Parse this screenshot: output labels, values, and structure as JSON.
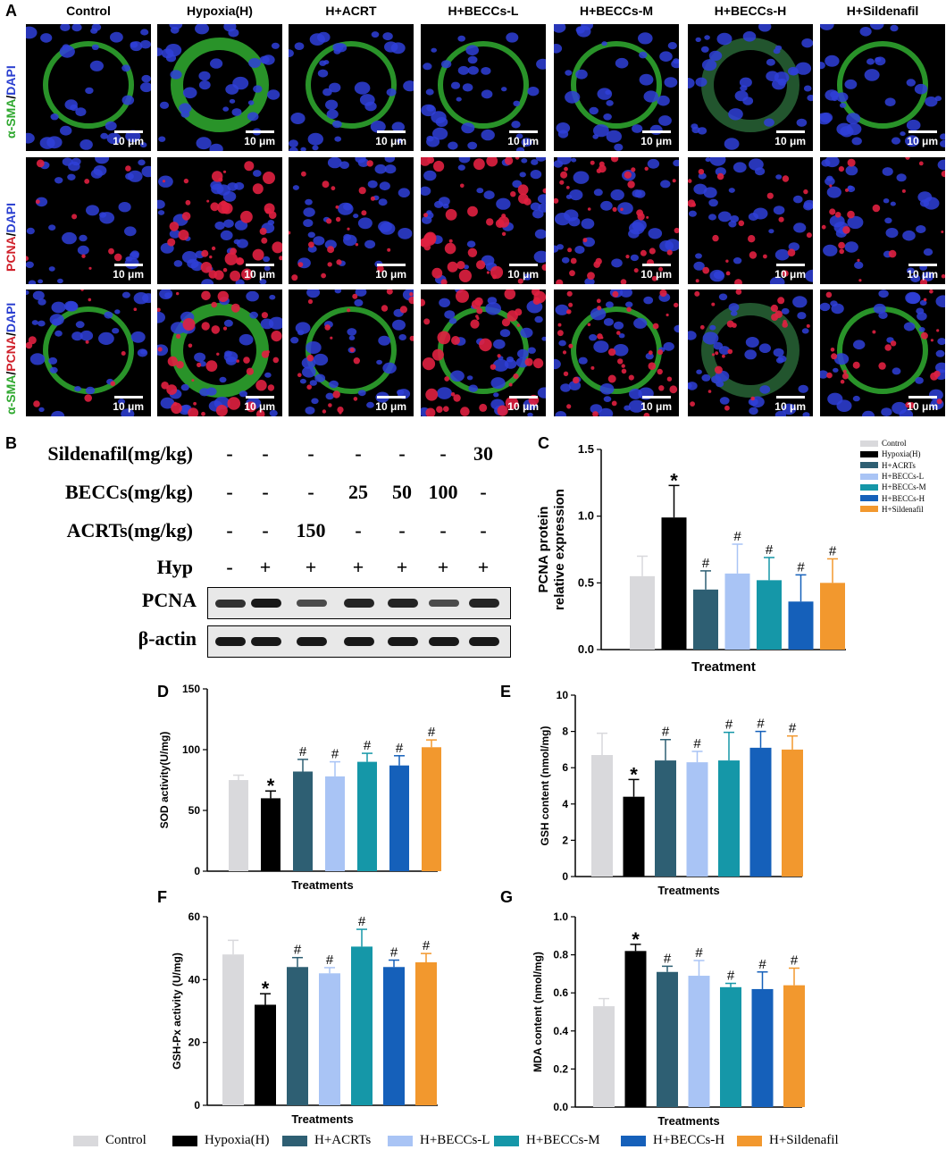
{
  "panel_labels": [
    "A",
    "B",
    "C",
    "D",
    "E",
    "F",
    "G"
  ],
  "micro": {
    "columns": [
      "Control",
      "Hypoxia(H)",
      "H+ACRT",
      "H+BECCs-L",
      "H+BECCs-M",
      "H+BECCs-H",
      "H+Sildenafil"
    ],
    "rows": [
      "α-SMA/DAPI",
      "PCNA/DAPI",
      "α-SMA/PCNA/DAPI"
    ],
    "scale_bar": "10 μm"
  },
  "blot": {
    "treatment_rows": [
      {
        "label": "Sildenafil(mg/kg)",
        "values": [
          "-",
          "-",
          "-",
          "-",
          "-",
          "-",
          "30"
        ]
      },
      {
        "label": "BECCs(mg/kg)",
        "values": [
          "-",
          "-",
          "-",
          "25",
          "50",
          "100",
          "-"
        ]
      },
      {
        "label": "ACRTs(mg/kg)",
        "values": [
          "-",
          "-",
          "150",
          "-",
          "-",
          "-",
          "-"
        ]
      },
      {
        "label": "Hyp",
        "values": [
          "-",
          "+",
          "+",
          "+",
          "+",
          "+",
          "+"
        ]
      }
    ],
    "band_labels": [
      "PCNA",
      "β-actin"
    ],
    "pcna_intensity": [
      0.75,
      0.95,
      0.55,
      0.85,
      0.85,
      0.55,
      0.85
    ],
    "actin_intensity": [
      0.95,
      0.95,
      0.95,
      0.95,
      0.95,
      0.95,
      0.95
    ]
  },
  "colors": [
    "#d9d9dc",
    "#000000",
    "#2e5f73",
    "#a9c4f5",
    "#1597a8",
    "#1560ba",
    "#f2982e"
  ],
  "legend_labels": [
    "Control",
    "Hypoxia(H)",
    "H+ACRTs",
    "H+BECCs-L",
    "H+BECCs-M",
    "H+BECCs-H",
    "H+Sildenafil"
  ],
  "chart_data": [
    {
      "id": "C",
      "type": "bar",
      "ylabel": "PCNA  protein relative expression",
      "xlabel": "Treatment",
      "ylim": [
        0,
        1.5
      ],
      "yticks": [
        0.0,
        0.5,
        1.0,
        1.5
      ],
      "categories": [
        "Control",
        "Hypoxia(H)",
        "H+ACRTs",
        "H+BECCs-L",
        "H+BECCs-M",
        "H+BECCs-H",
        "H+Sildenafil"
      ],
      "values": [
        0.55,
        0.99,
        0.45,
        0.57,
        0.52,
        0.36,
        0.5
      ],
      "errors": [
        0.15,
        0.24,
        0.14,
        0.22,
        0.17,
        0.2,
        0.18
      ],
      "marks": [
        "",
        "*",
        "#",
        "#",
        "#",
        "#",
        "#"
      ]
    },
    {
      "id": "D",
      "type": "bar",
      "ylabel": "SOD activity(U/mg)",
      "xlabel": "Treatments",
      "ylim": [
        0,
        150
      ],
      "yticks": [
        0,
        50,
        100,
        150
      ],
      "categories": [
        "Control",
        "Hypoxia(H)",
        "H+ACRTs",
        "H+BECCs-L",
        "H+BECCs-M",
        "H+BECCs-H",
        "H+Sildenafil"
      ],
      "values": [
        75,
        60,
        82,
        78,
        90,
        87,
        102
      ],
      "errors": [
        4,
        6,
        10,
        12,
        7,
        8,
        6
      ],
      "marks": [
        "",
        "*",
        "#",
        "#",
        "#",
        "#",
        "#"
      ]
    },
    {
      "id": "E",
      "type": "bar",
      "ylabel": "GSH content (nmol/mg)",
      "xlabel": "Treatments",
      "ylim": [
        0,
        10
      ],
      "yticks": [
        0,
        2,
        4,
        6,
        8,
        10
      ],
      "categories": [
        "Control",
        "Hypoxia(H)",
        "H+ACRTs",
        "H+BECCs-L",
        "H+BECCs-M",
        "H+BECCs-H",
        "H+Sildenafil"
      ],
      "values": [
        6.7,
        4.4,
        6.4,
        6.3,
        6.4,
        7.1,
        7.0
      ],
      "errors": [
        1.2,
        0.95,
        1.15,
        0.6,
        1.55,
        0.9,
        0.75
      ],
      "marks": [
        "",
        "*",
        "#",
        "#",
        "#",
        "#",
        "#"
      ]
    },
    {
      "id": "F",
      "type": "bar",
      "ylabel": "GSH-Px activity (U/mg)",
      "xlabel": "Treatments",
      "ylim": [
        0,
        60
      ],
      "yticks": [
        0,
        20,
        40,
        60
      ],
      "categories": [
        "Control",
        "Hypoxia(H)",
        "H+ACRTs",
        "H+BECCs-L",
        "H+BECCs-M",
        "H+BECCs-H",
        "H+Sildenafil"
      ],
      "values": [
        48,
        32,
        44,
        42,
        50.5,
        44,
        45.5
      ],
      "errors": [
        4.5,
        3.5,
        3,
        1.8,
        5.5,
        2.2,
        2.8
      ],
      "marks": [
        "",
        "*",
        "#",
        "#",
        "#",
        "#",
        "#"
      ]
    },
    {
      "id": "G",
      "type": "bar",
      "ylabel": "MDA content (nmol/mg)",
      "xlabel": "Treatments",
      "ylim": [
        0,
        1.0
      ],
      "yticks": [
        0.0,
        0.2,
        0.4,
        0.6,
        0.8,
        1.0
      ],
      "categories": [
        "Control",
        "Hypoxia(H)",
        "H+ACRTs",
        "H+BECCs-L",
        "H+BECCs-M",
        "H+BECCs-H",
        "H+Sildenafil"
      ],
      "values": [
        0.53,
        0.82,
        0.71,
        0.69,
        0.63,
        0.62,
        0.64
      ],
      "errors": [
        0.04,
        0.035,
        0.03,
        0.08,
        0.02,
        0.09,
        0.09
      ],
      "marks": [
        "",
        "*",
        "#",
        "#",
        "#",
        "#",
        "#"
      ]
    }
  ]
}
